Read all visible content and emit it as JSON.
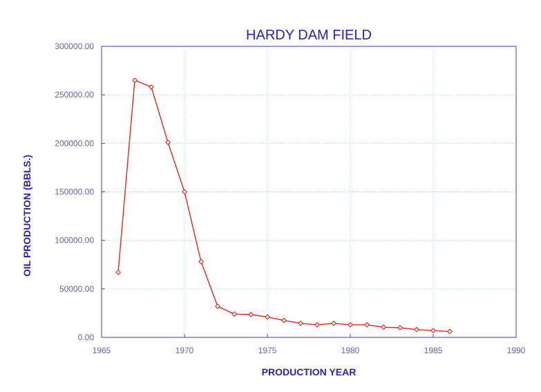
{
  "colors": {
    "title": "#2a22a8",
    "axis_title": "#2a22a8",
    "tick_label": "#6a5fb8",
    "frame": "#3f3faa",
    "grid": "#9ed4ea",
    "series": "#e8241a"
  },
  "chart_data": {
    "type": "line",
    "title": "HARDY DAM FIELD",
    "xlabel": "PRODUCTION YEAR",
    "ylabel": "OIL PRODUCTION (BBLS.)",
    "xlim": [
      1965,
      1990
    ],
    "ylim": [
      0,
      300000
    ],
    "x_ticks": [
      1965,
      1970,
      1975,
      1980,
      1985,
      1990
    ],
    "x_tick_labels": [
      "1965",
      "1970",
      "1975",
      "1980",
      "1985",
      "1990"
    ],
    "y_ticks": [
      0,
      50000,
      100000,
      150000,
      200000,
      250000,
      300000
    ],
    "y_tick_labels": [
      "0.00",
      "50000.00",
      "100000.00",
      "150000.00",
      "200000.00",
      "250000.00",
      "300000.00"
    ],
    "grid": true,
    "marker": "diamond",
    "series": [
      {
        "x": [
          1966,
          1967,
          1968,
          1969,
          1970,
          1971,
          1972,
          1973,
          1974,
          1975,
          1976,
          1977,
          1978,
          1979,
          1980,
          1981,
          1982,
          1983,
          1984,
          1985,
          1986
        ],
        "values": [
          67000,
          265000,
          258000,
          201000,
          150000,
          78000,
          32000,
          24000,
          23500,
          21000,
          17500,
          14500,
          13000,
          14500,
          13000,
          13000,
          10500,
          10000,
          8000,
          7000,
          6000
        ]
      }
    ]
  }
}
